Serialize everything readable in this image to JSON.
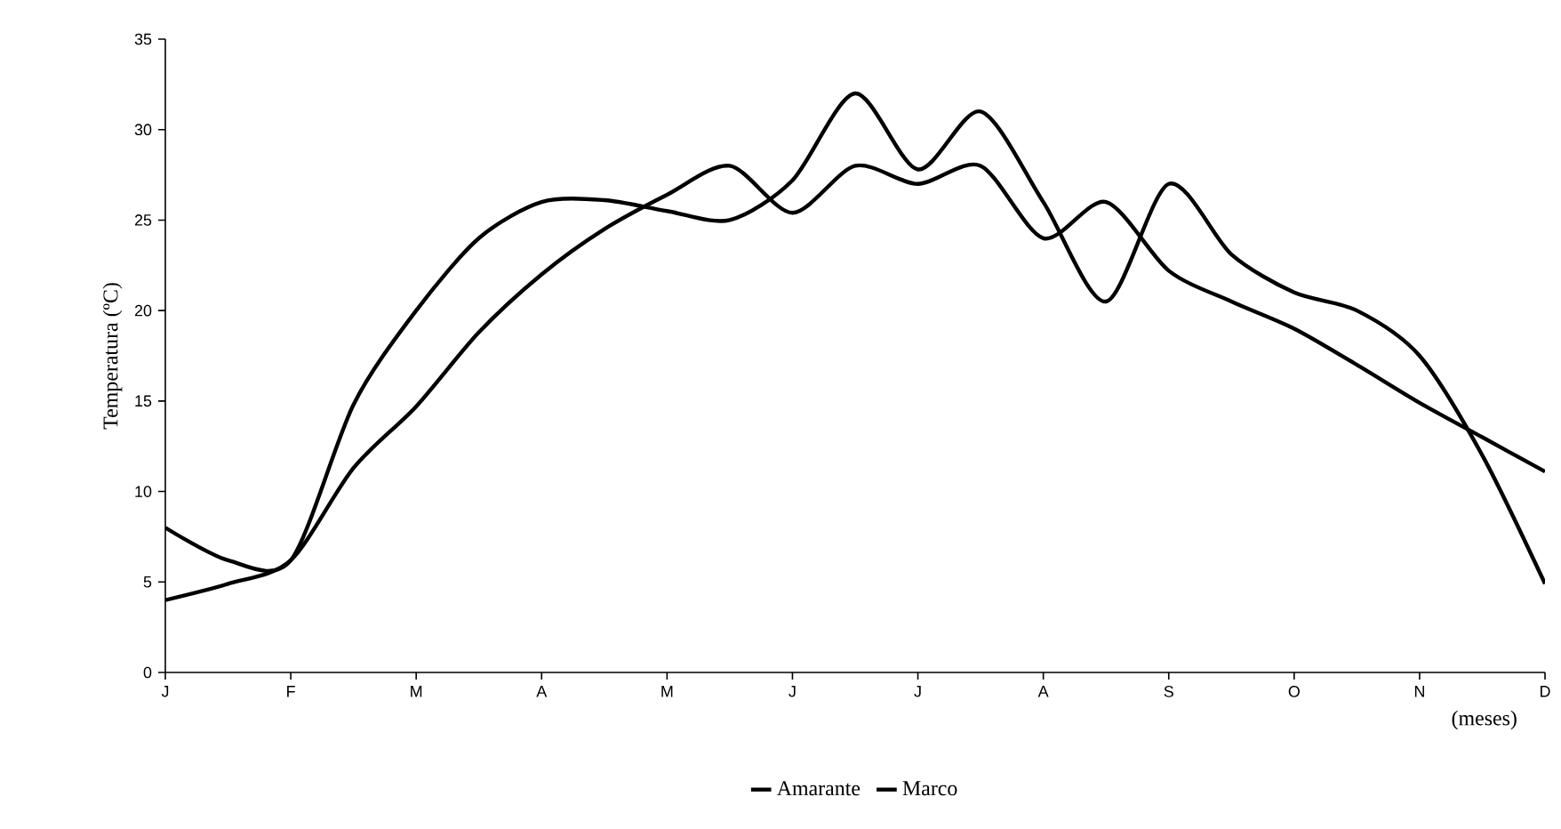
{
  "chart_data": {
    "type": "line",
    "xlabel": "(meses)",
    "ylabel": "Temperatura (ºC)",
    "categories": [
      "J",
      null,
      "F",
      null,
      "M",
      null,
      "A",
      null,
      "M",
      null,
      "J",
      null,
      "J",
      null,
      "A",
      null,
      "S",
      null,
      "O",
      null,
      "N",
      null,
      "D"
    ],
    "ylim": [
      0,
      35
    ],
    "yticks": [
      0,
      5,
      10,
      15,
      20,
      25,
      30,
      35
    ],
    "legend": "bottom",
    "line_style": "solid",
    "series": [
      {
        "name": "Amarante",
        "color": "#000000",
        "values": [
          8,
          6.2,
          6.2,
          14.8,
          20,
          24,
          26,
          26.1,
          25.5,
          25,
          27.2,
          32,
          27.8,
          31,
          26,
          20.5,
          27,
          23.1,
          21,
          20,
          17.5,
          12,
          4.9
        ]
      },
      {
        "name": "Marco",
        "color": "#000000",
        "values": [
          4,
          4.9,
          6.2,
          11.3,
          14.7,
          18.8,
          22,
          24.5,
          26.4,
          28,
          25.4,
          28,
          27,
          28,
          24,
          26,
          22.2,
          20.5,
          19,
          17,
          14.9,
          13,
          11.1
        ]
      }
    ]
  }
}
